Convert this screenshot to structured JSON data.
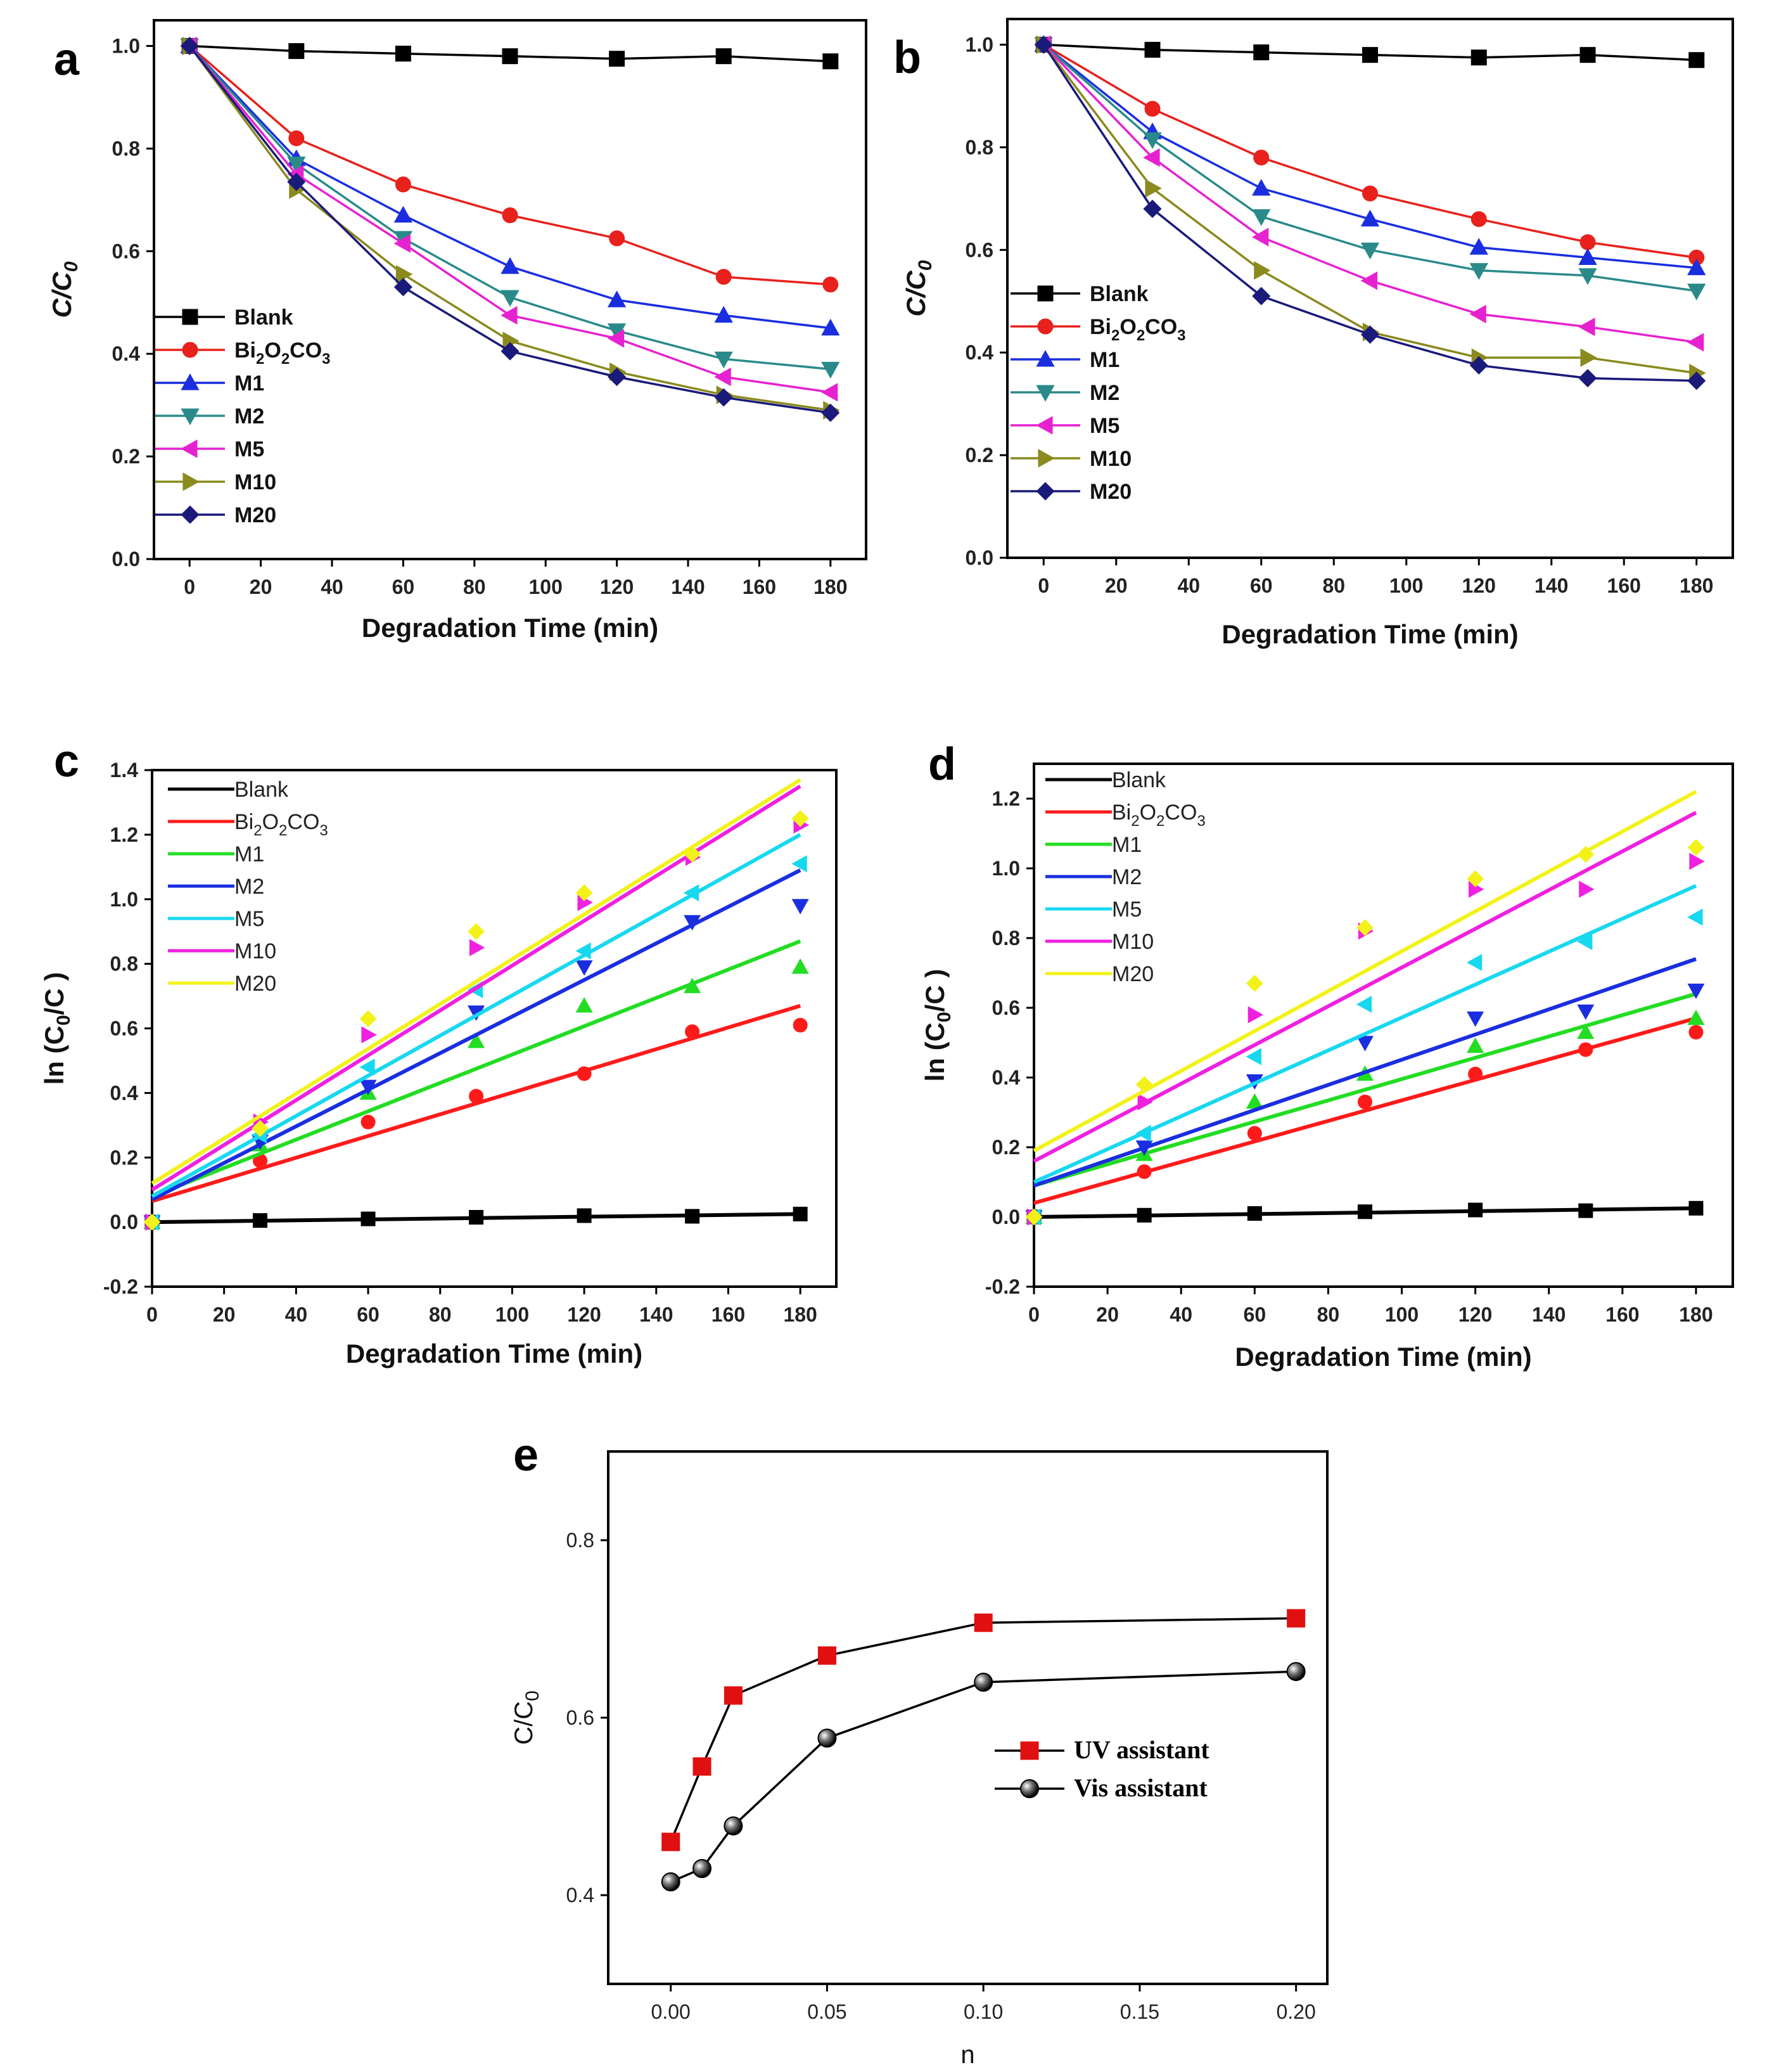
{
  "chart_data": [
    {
      "id": "a",
      "type": "line",
      "panel_label": "a",
      "xlabel": "Degradation Time (min)",
      "ylabel": "C/C0",
      "ylabel_main": "C/C",
      "ylabel_sub": "0",
      "xlim": [
        -10,
        190
      ],
      "ylim": [
        0.0,
        1.05
      ],
      "xticks": [
        0,
        20,
        40,
        60,
        80,
        100,
        120,
        140,
        160,
        180
      ],
      "yticks": [
        0.0,
        0.2,
        0.4,
        0.6,
        0.8,
        1.0
      ],
      "ytick_labels": [
        "0.0",
        "0.2",
        "0.4",
        "0.6",
        "0.8",
        "1.0"
      ],
      "legend_position": "lower-left",
      "series": [
        {
          "name": "Blank",
          "legend": "Blank",
          "marker": "square",
          "color": "#000000",
          "x": [
            0,
            30,
            60,
            90,
            120,
            150,
            180
          ],
          "y": [
            1.0,
            0.99,
            0.985,
            0.98,
            0.975,
            0.98,
            0.97
          ]
        },
        {
          "name": "Bi2O2CO3",
          "legend": "Bi2O2CO3",
          "marker": "circle",
          "color": "#e8211c",
          "x": [
            0,
            30,
            60,
            90,
            120,
            150,
            180
          ],
          "y": [
            1.0,
            0.82,
            0.73,
            0.67,
            0.625,
            0.55,
            0.535
          ]
        },
        {
          "name": "M1",
          "legend": "M1",
          "marker": "triangle-up",
          "color": "#1a2ee0",
          "x": [
            0,
            30,
            60,
            90,
            120,
            150,
            180
          ],
          "y": [
            1.0,
            0.78,
            0.67,
            0.57,
            0.505,
            0.475,
            0.45
          ]
        },
        {
          "name": "M2",
          "legend": "M2",
          "marker": "triangle-down",
          "color": "#2a8a8a",
          "x": [
            0,
            30,
            60,
            90,
            120,
            150,
            180
          ],
          "y": [
            1.0,
            0.77,
            0.625,
            0.51,
            0.445,
            0.39,
            0.37
          ]
        },
        {
          "name": "M5",
          "legend": "M5",
          "marker": "triangle-left",
          "color": "#e622d0",
          "x": [
            0,
            30,
            60,
            90,
            120,
            150,
            180
          ],
          "y": [
            1.0,
            0.75,
            0.615,
            0.475,
            0.43,
            0.355,
            0.325
          ]
        },
        {
          "name": "M10",
          "legend": "M10",
          "marker": "triangle-right",
          "color": "#8a8a1e",
          "x": [
            0,
            30,
            60,
            90,
            120,
            150,
            180
          ],
          "y": [
            1.0,
            0.72,
            0.555,
            0.425,
            0.365,
            0.32,
            0.29
          ]
        },
        {
          "name": "M20",
          "legend": "M20",
          "marker": "diamond",
          "color": "#1a1a7a",
          "x": [
            0,
            30,
            60,
            90,
            120,
            150,
            180
          ],
          "y": [
            1.0,
            0.735,
            0.53,
            0.405,
            0.355,
            0.315,
            0.285
          ]
        }
      ]
    },
    {
      "id": "b",
      "type": "line",
      "panel_label": "b",
      "xlabel": "Degradation Time (min)",
      "ylabel": "C/C0",
      "ylabel_main": "C/C",
      "ylabel_sub": "0",
      "xlim": [
        -10,
        190
      ],
      "ylim": [
        0.0,
        1.05
      ],
      "xticks": [
        0,
        20,
        40,
        60,
        80,
        100,
        120,
        140,
        160,
        180
      ],
      "yticks": [
        0.0,
        0.2,
        0.4,
        0.6,
        0.8,
        1.0
      ],
      "ytick_labels": [
        "0.0",
        "0.2",
        "0.4",
        "0.6",
        "0.8",
        "1.0"
      ],
      "legend_position": "lower-left",
      "series": [
        {
          "name": "Blank",
          "legend": "Blank",
          "marker": "square",
          "color": "#000000",
          "x": [
            0,
            30,
            60,
            90,
            120,
            150,
            180
          ],
          "y": [
            1.0,
            0.99,
            0.985,
            0.98,
            0.975,
            0.98,
            0.97
          ]
        },
        {
          "name": "Bi2O2CO3",
          "legend": "Bi2O2CO3",
          "marker": "circle",
          "color": "#e8211c",
          "x": [
            0,
            30,
            60,
            90,
            120,
            150,
            180
          ],
          "y": [
            1.0,
            0.875,
            0.78,
            0.71,
            0.66,
            0.615,
            0.585
          ]
        },
        {
          "name": "M1",
          "legend": "M1",
          "marker": "triangle-up",
          "color": "#1a2ee0",
          "x": [
            0,
            30,
            60,
            90,
            120,
            150,
            180
          ],
          "y": [
            1.0,
            0.83,
            0.72,
            0.66,
            0.605,
            0.585,
            0.565
          ]
        },
        {
          "name": "M2",
          "legend": "M2",
          "marker": "triangle-down",
          "color": "#2a8a8a",
          "x": [
            0,
            30,
            60,
            90,
            120,
            150,
            180
          ],
          "y": [
            1.0,
            0.815,
            0.665,
            0.6,
            0.56,
            0.55,
            0.52
          ]
        },
        {
          "name": "M5",
          "legend": "M5",
          "marker": "triangle-left",
          "color": "#e622d0",
          "x": [
            0,
            30,
            60,
            90,
            120,
            150,
            180
          ],
          "y": [
            1.0,
            0.78,
            0.625,
            0.54,
            0.475,
            0.45,
            0.42
          ]
        },
        {
          "name": "M10",
          "legend": "M10",
          "marker": "triangle-right",
          "color": "#8a8a1e",
          "x": [
            0,
            30,
            60,
            90,
            120,
            150,
            180
          ],
          "y": [
            1.0,
            0.72,
            0.56,
            0.44,
            0.39,
            0.39,
            0.36
          ]
        },
        {
          "name": "M20",
          "legend": "M20",
          "marker": "diamond",
          "color": "#1a1a7a",
          "x": [
            0,
            30,
            60,
            90,
            120,
            150,
            180
          ],
          "y": [
            1.0,
            0.68,
            0.51,
            0.435,
            0.375,
            0.35,
            0.345
          ]
        }
      ]
    },
    {
      "id": "c",
      "type": "scatter",
      "panel_label": "c",
      "xlabel": "Degradation Time (min)",
      "ylabel": "ln (C0/C )",
      "ylabel_main": "ln (C",
      "ylabel_sub": "0",
      "ylabel_tail": "/C )",
      "xlim": [
        0,
        190
      ],
      "ylim": [
        -0.2,
        1.4
      ],
      "xticks": [
        0,
        20,
        40,
        60,
        80,
        100,
        120,
        140,
        160,
        180
      ],
      "yticks": [
        -0.2,
        0.0,
        0.2,
        0.4,
        0.6,
        0.8,
        1.0,
        1.2,
        1.4
      ],
      "ytick_labels": [
        "-0.2",
        "0.0",
        "0.2",
        "0.4",
        "0.6",
        "0.8",
        "1.0",
        "1.2",
        "1.4"
      ],
      "legend_position": "top-left",
      "series": [
        {
          "name": "Blank",
          "legend": "Blank",
          "marker": "square",
          "color": "#000000",
          "x": [
            0,
            30,
            60,
            90,
            120,
            150,
            180
          ],
          "y": [
            0.0,
            0.005,
            0.01,
            0.015,
            0.02,
            0.018,
            0.025
          ],
          "fit": [
            0.0,
            0.025
          ]
        },
        {
          "name": "Bi2O2CO3",
          "legend": "Bi2O2CO3",
          "marker": "circle",
          "color": "#ff1a1a",
          "x": [
            0,
            30,
            60,
            90,
            120,
            150,
            180
          ],
          "y": [
            0.0,
            0.19,
            0.31,
            0.39,
            0.46,
            0.59,
            0.61
          ],
          "fit": [
            0.065,
            0.67
          ]
        },
        {
          "name": "M1",
          "legend": "M1",
          "marker": "triangle-up",
          "color": "#22dd22",
          "x": [
            0,
            30,
            60,
            90,
            120,
            150,
            180
          ],
          "y": [
            0.0,
            0.24,
            0.4,
            0.56,
            0.67,
            0.73,
            0.79
          ],
          "fit": [
            0.08,
            0.87
          ]
        },
        {
          "name": "M2",
          "legend": "M2",
          "marker": "triangle-down",
          "color": "#1a2ee0",
          "x": [
            0,
            30,
            60,
            90,
            120,
            150,
            180
          ],
          "y": [
            0.0,
            0.25,
            0.42,
            0.65,
            0.79,
            0.93,
            0.98
          ],
          "fit": [
            0.07,
            1.09
          ]
        },
        {
          "name": "M5",
          "legend": "M5",
          "marker": "triangle-left",
          "color": "#18d8f0",
          "x": [
            0,
            30,
            60,
            90,
            120,
            150,
            180
          ],
          "y": [
            0.0,
            0.27,
            0.48,
            0.72,
            0.84,
            1.02,
            1.11
          ],
          "fit": [
            0.08,
            1.2
          ]
        },
        {
          "name": "M10",
          "legend": "M10",
          "marker": "triangle-right",
          "color": "#f020e0",
          "x": [
            0,
            30,
            60,
            90,
            120,
            150,
            180
          ],
          "y": [
            0.0,
            0.31,
            0.58,
            0.85,
            0.99,
            1.13,
            1.23
          ],
          "fit": [
            0.1,
            1.35
          ]
        },
        {
          "name": "M20",
          "legend": "M20",
          "marker": "diamond",
          "color": "#f2f21a",
          "x": [
            0,
            30,
            60,
            90,
            120,
            150,
            180
          ],
          "y": [
            0.0,
            0.29,
            0.63,
            0.9,
            1.02,
            1.14,
            1.25
          ],
          "fit": [
            0.12,
            1.37
          ]
        }
      ]
    },
    {
      "id": "d",
      "type": "scatter",
      "panel_label": "d",
      "xlabel": "Degradation Time (min)",
      "ylabel": "ln (C0/C )",
      "ylabel_main": "ln (C",
      "ylabel_sub": "0",
      "ylabel_tail": "/C )",
      "xlim": [
        0,
        190
      ],
      "ylim": [
        -0.2,
        1.3
      ],
      "xticks": [
        0,
        20,
        40,
        60,
        80,
        100,
        120,
        140,
        160,
        180
      ],
      "yticks": [
        -0.2,
        0.0,
        0.2,
        0.4,
        0.6,
        0.8,
        1.0,
        1.2
      ],
      "ytick_labels": [
        "-0.2",
        "0.0",
        "0.2",
        "0.4",
        "0.6",
        "0.8",
        "1.0",
        "1.2"
      ],
      "legend_position": "top-left",
      "series": [
        {
          "name": "Blank",
          "legend": "Blank",
          "marker": "square",
          "color": "#000000",
          "x": [
            0,
            30,
            60,
            90,
            120,
            150,
            180
          ],
          "y": [
            0.0,
            0.005,
            0.01,
            0.015,
            0.02,
            0.018,
            0.025
          ],
          "fit": [
            0.0,
            0.025
          ]
        },
        {
          "name": "Bi2O2CO3",
          "legend": "Bi2O2CO3",
          "marker": "circle",
          "color": "#ff1a1a",
          "x": [
            0,
            30,
            60,
            90,
            120,
            150,
            180
          ],
          "y": [
            0.0,
            0.13,
            0.24,
            0.33,
            0.41,
            0.48,
            0.53
          ],
          "fit": [
            0.04,
            0.57
          ]
        },
        {
          "name": "M1",
          "legend": "M1",
          "marker": "triangle-up",
          "color": "#22dd22",
          "x": [
            0,
            30,
            60,
            90,
            120,
            150,
            180
          ],
          "y": [
            0.0,
            0.18,
            0.33,
            0.41,
            0.49,
            0.53,
            0.57
          ],
          "fit": [
            0.09,
            0.64
          ]
        },
        {
          "name": "M2",
          "legend": "M2",
          "marker": "triangle-down",
          "color": "#1a2ee0",
          "x": [
            0,
            30,
            60,
            90,
            120,
            150,
            180
          ],
          "y": [
            0.0,
            0.2,
            0.39,
            0.5,
            0.57,
            0.59,
            0.65
          ],
          "fit": [
            0.09,
            0.74
          ]
        },
        {
          "name": "M5",
          "legend": "M5",
          "marker": "triangle-left",
          "color": "#18d8f0",
          "x": [
            0,
            30,
            60,
            90,
            120,
            150,
            180
          ],
          "y": [
            0.0,
            0.24,
            0.46,
            0.61,
            0.73,
            0.79,
            0.86
          ],
          "fit": [
            0.1,
            0.95
          ]
        },
        {
          "name": "M10",
          "legend": "M10",
          "marker": "triangle-right",
          "color": "#f020e0",
          "x": [
            0,
            30,
            60,
            90,
            120,
            150,
            180
          ],
          "y": [
            0.0,
            0.33,
            0.58,
            0.82,
            0.94,
            0.94,
            1.02
          ],
          "fit": [
            0.16,
            1.16
          ]
        },
        {
          "name": "M20",
          "legend": "M20",
          "marker": "diamond",
          "color": "#f2f21a",
          "x": [
            0,
            30,
            60,
            90,
            120,
            150,
            180
          ],
          "y": [
            0.0,
            0.38,
            0.67,
            0.83,
            0.97,
            1.04,
            1.06
          ],
          "fit": [
            0.19,
            1.22
          ]
        }
      ]
    },
    {
      "id": "e",
      "type": "line",
      "panel_label": "e",
      "xlabel": "n",
      "ylabel": "C/C0",
      "ylabel_main": "C/C",
      "ylabel_sub": "0",
      "xlim": [
        -0.02,
        0.21
      ],
      "ylim": [
        0.3,
        0.9
      ],
      "xticks": [
        0.0,
        0.05,
        0.1,
        0.15,
        0.2
      ],
      "xtick_labels": [
        "0.00",
        "0.05",
        "0.10",
        "0.15",
        "0.20"
      ],
      "yticks": [
        0.4,
        0.6,
        0.8
      ],
      "ytick_labels": [
        "0.4",
        "0.6",
        "0.8"
      ],
      "legend_position": "center-right",
      "series": [
        {
          "name": "UV assistant",
          "legend": "UV assistant",
          "marker": "square",
          "color": "#e01010",
          "x": [
            0.0,
            0.01,
            0.02,
            0.05,
            0.1,
            0.2
          ],
          "y": [
            0.46,
            0.545,
            0.625,
            0.67,
            0.707,
            0.712
          ]
        },
        {
          "name": "Vis assistant",
          "legend": "Vis assistant",
          "marker": "sphere",
          "color": "#111111",
          "x": [
            0.0,
            0.01,
            0.02,
            0.05,
            0.1,
            0.2
          ],
          "y": [
            0.415,
            0.43,
            0.478,
            0.577,
            0.64,
            0.652
          ]
        }
      ]
    }
  ]
}
